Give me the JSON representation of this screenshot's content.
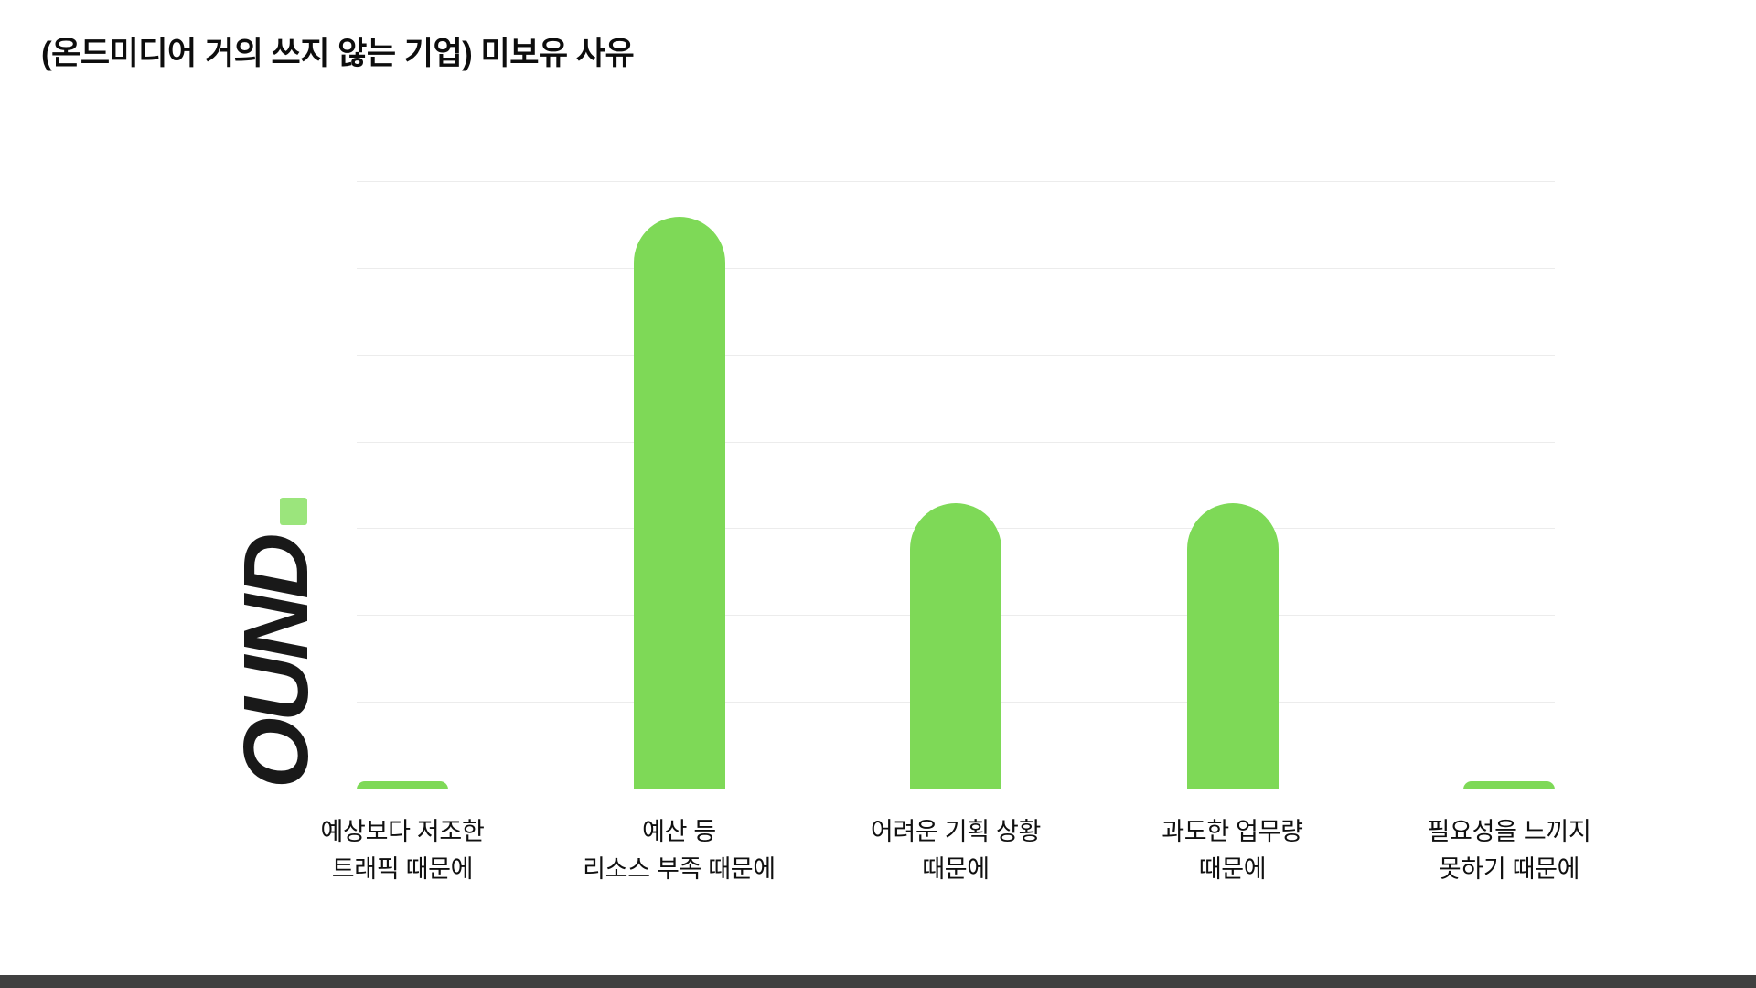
{
  "page": {
    "title": "(온드미디어 거의 쓰지 않는 기업) 미보유 사유",
    "logo": {
      "text": "OUND",
      "dot_color": "#9be57c"
    }
  },
  "chart_data": {
    "type": "bar",
    "title": "(온드미디어 거의 쓰지 않는 기업) 미보유 사유",
    "categories": [
      [
        "예상보다 저조한",
        "트래픽 때문에"
      ],
      [
        "예산 등",
        "리소스 부족 때문에"
      ],
      [
        "어려운 기획 상황",
        "때문에"
      ],
      [
        "과도한 업무량",
        "때문에"
      ],
      [
        "필요성을 느끼지",
        "못하기 때문에"
      ]
    ],
    "values": [
      1,
      66,
      33,
      33,
      1
    ],
    "xlabel": "",
    "ylabel": "",
    "ylim": [
      0,
      70
    ],
    "grid_step": 10,
    "grid": true,
    "y_tick_labels_visible": false,
    "legend": "none",
    "bar_color": "#7ed957",
    "gridline_color": "#ececec",
    "baseline_color": "#d6d6d6"
  },
  "footer": {
    "strip_color": "#404040"
  }
}
